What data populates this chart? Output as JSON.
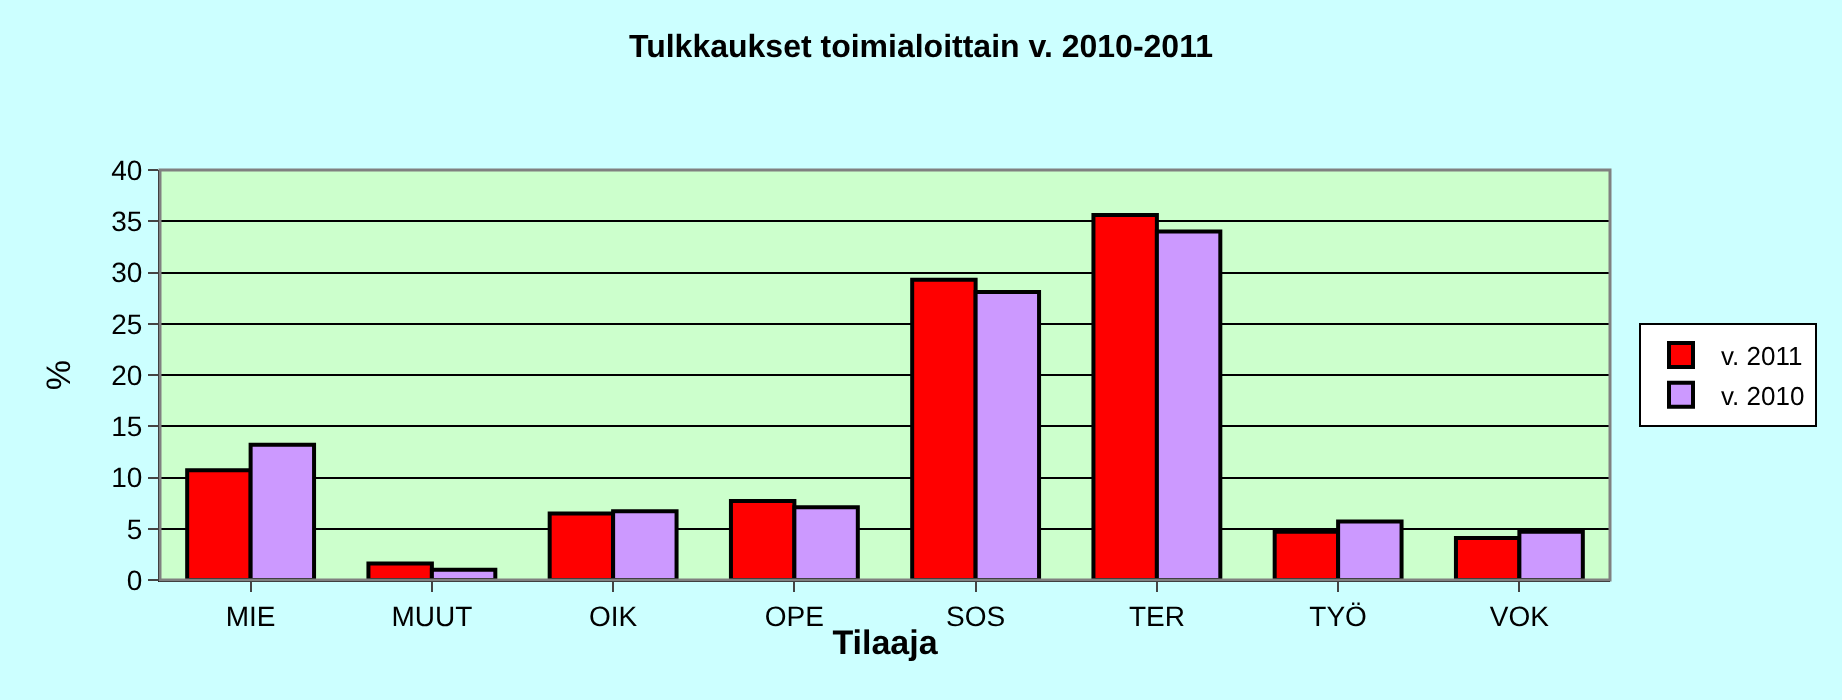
{
  "chart_data": {
    "type": "bar",
    "title": "Tulkkaukset toimialoittain v. 2010-2011",
    "xlabel": "Tilaaja",
    "ylabel": "%",
    "categories": [
      "MIE",
      "MUUT",
      "OIK",
      "OPE",
      "SOS",
      "TER",
      "TYÖ",
      "VOK"
    ],
    "series": [
      {
        "name": "v. 2011",
        "color": "#ff0000",
        "values": [
          10.7,
          1.6,
          6.5,
          7.7,
          29.3,
          35.6,
          4.7,
          4.1
        ]
      },
      {
        "name": "v. 2010",
        "color": "#cc99ff",
        "values": [
          13.2,
          1.0,
          6.7,
          7.1,
          28.1,
          34.0,
          5.7,
          4.7
        ]
      }
    ],
    "ylim": [
      0,
      40
    ],
    "yticks": [
      0,
      5,
      10,
      15,
      20,
      25,
      30,
      35,
      40
    ],
    "grid": "y",
    "legend": "right"
  }
}
